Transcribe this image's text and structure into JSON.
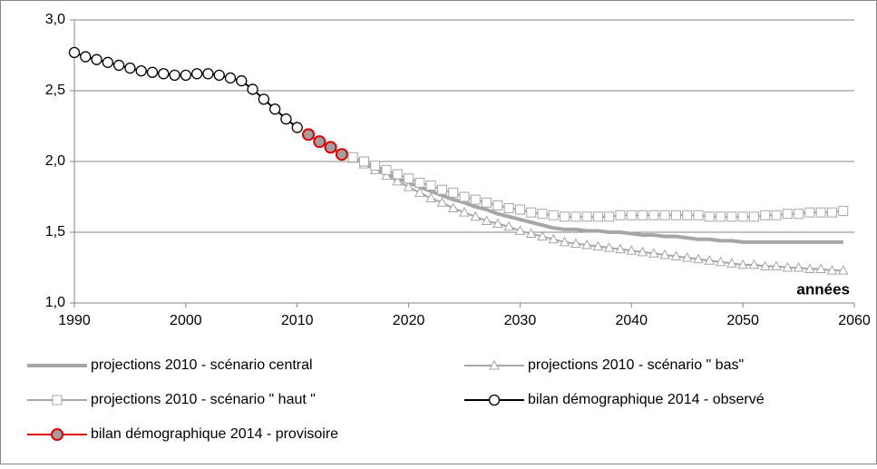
{
  "chart_data": {
    "type": "line",
    "annotation": "années",
    "xlim": [
      1990,
      2060
    ],
    "xticks": [
      1990,
      2000,
      2010,
      2020,
      2030,
      2040,
      2050,
      2060
    ],
    "ylim": [
      1,
      3
    ],
    "yticks": [
      {
        "value": 1,
        "label": "1,0"
      },
      {
        "value": 1.5,
        "label": "1,5"
      },
      {
        "value": 2,
        "label": "2,0"
      },
      {
        "value": 2.5,
        "label": "2,5"
      },
      {
        "value": 3,
        "label": "3,0"
      }
    ],
    "grid": true,
    "series": [
      {
        "name": "projections 2010 - scénario central",
        "color": "#a6a6a6",
        "marker": "none",
        "x": [
          2015,
          2016,
          2017,
          2018,
          2019,
          2020,
          2021,
          2022,
          2023,
          2024,
          2025,
          2026,
          2027,
          2028,
          2029,
          2030,
          2031,
          2032,
          2033,
          2034,
          2035,
          2036,
          2037,
          2038,
          2039,
          2040,
          2041,
          2042,
          2043,
          2044,
          2045,
          2046,
          2047,
          2048,
          2049,
          2050,
          2051,
          2052,
          2053,
          2054,
          2055,
          2056,
          2057,
          2058,
          2059
        ],
        "values": [
          2.03,
          1.99,
          1.95,
          1.92,
          1.88,
          1.85,
          1.82,
          1.79,
          1.76,
          1.73,
          1.71,
          1.68,
          1.66,
          1.63,
          1.61,
          1.59,
          1.57,
          1.55,
          1.53,
          1.52,
          1.52,
          1.51,
          1.51,
          1.5,
          1.5,
          1.49,
          1.48,
          1.48,
          1.47,
          1.47,
          1.46,
          1.45,
          1.45,
          1.44,
          1.44,
          1.43,
          1.43,
          1.43,
          1.43,
          1.43,
          1.43,
          1.43,
          1.43,
          1.43,
          1.43
        ]
      },
      {
        "name": "projections 2010 - scénario \" bas\"",
        "color": "#a6a6a6",
        "marker": "triangle",
        "x": [
          2015,
          2016,
          2017,
          2018,
          2019,
          2020,
          2021,
          2022,
          2023,
          2024,
          2025,
          2026,
          2027,
          2028,
          2029,
          2030,
          2031,
          2032,
          2033,
          2034,
          2035,
          2036,
          2037,
          2038,
          2039,
          2040,
          2041,
          2042,
          2043,
          2044,
          2045,
          2046,
          2047,
          2048,
          2049,
          2050,
          2051,
          2052,
          2053,
          2054,
          2055,
          2056,
          2057,
          2058,
          2059
        ],
        "values": [
          2.02,
          1.98,
          1.94,
          1.9,
          1.86,
          1.82,
          1.78,
          1.74,
          1.71,
          1.67,
          1.64,
          1.61,
          1.58,
          1.56,
          1.54,
          1.51,
          1.49,
          1.47,
          1.45,
          1.43,
          1.42,
          1.41,
          1.4,
          1.39,
          1.38,
          1.37,
          1.36,
          1.35,
          1.34,
          1.33,
          1.32,
          1.31,
          1.3,
          1.29,
          1.28,
          1.27,
          1.27,
          1.26,
          1.26,
          1.25,
          1.25,
          1.24,
          1.24,
          1.23,
          1.23
        ]
      },
      {
        "name": "projections 2010 - scénario \" haut \"",
        "color": "#a6a6a6",
        "marker": "square",
        "x": [
          2015,
          2016,
          2017,
          2018,
          2019,
          2020,
          2021,
          2022,
          2023,
          2024,
          2025,
          2026,
          2027,
          2028,
          2029,
          2030,
          2031,
          2032,
          2033,
          2034,
          2035,
          2036,
          2037,
          2038,
          2039,
          2040,
          2041,
          2042,
          2043,
          2044,
          2045,
          2046,
          2047,
          2048,
          2049,
          2050,
          2051,
          2052,
          2053,
          2054,
          2055,
          2056,
          2057,
          2058,
          2059
        ],
        "values": [
          2.03,
          2.0,
          1.97,
          1.94,
          1.91,
          1.88,
          1.85,
          1.83,
          1.8,
          1.78,
          1.75,
          1.73,
          1.71,
          1.69,
          1.67,
          1.66,
          1.64,
          1.63,
          1.62,
          1.61,
          1.61,
          1.61,
          1.61,
          1.61,
          1.62,
          1.62,
          1.62,
          1.62,
          1.62,
          1.62,
          1.62,
          1.62,
          1.61,
          1.61,
          1.61,
          1.61,
          1.61,
          1.62,
          1.62,
          1.63,
          1.63,
          1.64,
          1.64,
          1.64,
          1.65
        ]
      },
      {
        "name": "bilan démographique 2014 - observé",
        "color": "#000000",
        "marker": "circle",
        "x": [
          1990,
          1991,
          1992,
          1993,
          1994,
          1995,
          1996,
          1997,
          1998,
          1999,
          2000,
          2001,
          2002,
          2003,
          2004,
          2005,
          2006,
          2007,
          2008,
          2009,
          2010
        ],
        "values": [
          2.77,
          2.74,
          2.72,
          2.7,
          2.68,
          2.66,
          2.64,
          2.63,
          2.62,
          2.61,
          2.61,
          2.62,
          2.62,
          2.61,
          2.59,
          2.57,
          2.51,
          2.44,
          2.37,
          2.3,
          2.24
        ]
      },
      {
        "name": "bilan démographique 2014 - provisoire",
        "color": "#e00000",
        "marker": "filled-circle",
        "x": [
          2011,
          2012,
          2013,
          2014
        ],
        "values": [
          2.19,
          2.14,
          2.1,
          2.05
        ]
      }
    ]
  }
}
